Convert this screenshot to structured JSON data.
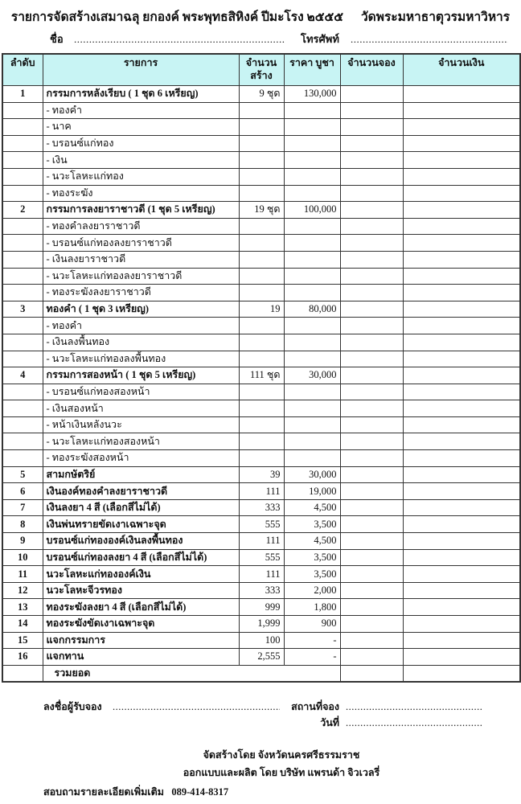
{
  "header": {
    "title_left": "รายการจัดสร้างเสมาฉลุ ยกองค์ พระพุทธสิหิงค์ ปีมะโรง ๒๕๕๕",
    "title_right": "วัดพระมหาธาตุวรมหาวิหาร",
    "name_label": "ชื่อ",
    "name_dots": "........................................................................",
    "phone_label": "โทรศัพท์",
    "phone_dots": "................................................................"
  },
  "table": {
    "columns": [
      "ลำดับ",
      "รายการ",
      "จำนวน สร้าง",
      "ราคา บูชา",
      "จำนวนจอง",
      "จำนวนเงิน"
    ],
    "rows": [
      {
        "no": "1",
        "item": "กรรมการหลังเรียบ   ( 1 ชุด 6 เหรียญ)",
        "qty": "9 ชุด",
        "price": "130,000",
        "bold": true
      },
      {
        "no": "",
        "item": "- ทองคำ",
        "qty": "",
        "price": ""
      },
      {
        "no": "",
        "item": "-  นาค",
        "qty": "",
        "price": ""
      },
      {
        "no": "",
        "item": "- บรอนซ์แก่ทอง",
        "qty": "",
        "price": ""
      },
      {
        "no": "",
        "item": "- เงิน",
        "qty": "",
        "price": ""
      },
      {
        "no": "",
        "item": "- นวะโลหะแก่ทอง",
        "qty": "",
        "price": ""
      },
      {
        "no": "",
        "item": "- ทองระฆัง",
        "qty": "",
        "price": ""
      },
      {
        "no": "2",
        "item": "กรรมการลงยาราชาวดี (1 ชุด 5 เหรียญ)",
        "qty": "19 ชุด",
        "price": "100,000",
        "bold": true
      },
      {
        "no": "",
        "item": "- ทองคำลงยาราชาวดี",
        "qty": "",
        "price": ""
      },
      {
        "no": "",
        "item": "- บรอนซ์แก่ทองลงยาราชาวดี",
        "qty": "",
        "price": ""
      },
      {
        "no": "",
        "item": "- เงินลงยาราชาวดี",
        "qty": "",
        "price": ""
      },
      {
        "no": "",
        "item": "- นวะโลหะแก่ทองลงยาราชาวดี",
        "qty": "",
        "price": ""
      },
      {
        "no": "",
        "item": "- ทองระฆังลงยาราชาวดี",
        "qty": "",
        "price": ""
      },
      {
        "no": "3",
        "item": "ทองคำ ( 1 ชุด 3 เหรียญ)",
        "qty": "19",
        "price": "80,000",
        "bold": true
      },
      {
        "no": "",
        "item": "- ทองคำ",
        "qty": "",
        "price": ""
      },
      {
        "no": "",
        "item": "- เงินลงพื้นทอง",
        "qty": "",
        "price": ""
      },
      {
        "no": "",
        "item": "- นวะโลหะแก่ทองลงพื้นทอง",
        "qty": "",
        "price": ""
      },
      {
        "no": "4",
        "item": "กรรมการสองหน้า ( 1 ชุด 5 เหรียญ)",
        "qty": "111 ชุด",
        "price": "30,000",
        "bold": true
      },
      {
        "no": "",
        "item": "- บรอนซ์แก่ทองสองหน้า",
        "qty": "",
        "price": ""
      },
      {
        "no": "",
        "item": "- เงินสองหน้า",
        "qty": "",
        "price": ""
      },
      {
        "no": "",
        "item": "- หน้าเงินหลังนวะ",
        "qty": "",
        "price": ""
      },
      {
        "no": "",
        "item": "- นวะโลหะแก่ทองสองหน้า",
        "qty": "",
        "price": ""
      },
      {
        "no": "",
        "item": "- ทองระฆังสองหน้า",
        "qty": "",
        "price": ""
      },
      {
        "no": "5",
        "item": "สามกษัตริย์",
        "qty": "39",
        "price": "30,000",
        "bold": true
      },
      {
        "no": "6",
        "item": "เงินองค์ทองคำลงยาราชาวดี",
        "qty": "111",
        "price": "19,000",
        "bold": true
      },
      {
        "no": "7",
        "item": "เงินลงยา 4 สี    (เลือกสีไม่ได้)",
        "qty": "333",
        "price": "4,500",
        "bold": true
      },
      {
        "no": "8",
        "item": "เงินพ่นทรายขัดเงาเฉพาะจุด",
        "qty": "555",
        "price": "3,500",
        "bold": true
      },
      {
        "no": "9",
        "item": "บรอนซ์แก่ทององค์เงินลงพื้นทอง",
        "qty": "111",
        "price": "4,500",
        "bold": true
      },
      {
        "no": "10",
        "item": "บรอนซ์แก่ทองลงยา 4 สี (เลือกสีไม่ได้)",
        "qty": "555",
        "price": "3,500",
        "bold": true
      },
      {
        "no": "11",
        "item": "นวะโลหะแก่ทององค์เงิน",
        "qty": "111",
        "price": "3,500",
        "bold": true
      },
      {
        "no": "12",
        "item": "นวะโลหะจีวรทอง",
        "qty": "333",
        "price": "2,000",
        "bold": true
      },
      {
        "no": "13",
        "item": "ทองระฆังลงยา 4 สี (เลือกสีไม่ได้)",
        "qty": "999",
        "price": "1,800",
        "bold": true
      },
      {
        "no": "14",
        "item": "ทองระฆังขัดเงาเฉพาะจุด",
        "qty": "1,999",
        "price": "900",
        "bold": true
      },
      {
        "no": "15",
        "item": "แจกกรรมการ",
        "qty": "100",
        "price": "-",
        "bold": true
      },
      {
        "no": "16",
        "item": "แจกทาน",
        "qty": "2,555",
        "price": "-",
        "bold": true
      }
    ],
    "total_label": "รวมยอด"
  },
  "footer": {
    "signer_label": "ลงชื่อผู้รับจอง",
    "signer_dots": "..........................................................................",
    "place_label": "สถานที่จอง",
    "place_dots": "..................................................",
    "date_label": "วันที่",
    "date_dots": "..................................................",
    "made_by": "จัดสร้างโดย จังหวัดนครศรีธรรมราช",
    "designed_by": "ออกแบบและผลิต โดย บริษัท แพรนด้า จิวเวลรี่",
    "contact_label": "สอบถามรายละเอียดเพิ่มเติม",
    "contact_phone": "089-414-8317"
  },
  "colors": {
    "header_bg": "#c8f4f4",
    "border": "#333333"
  }
}
